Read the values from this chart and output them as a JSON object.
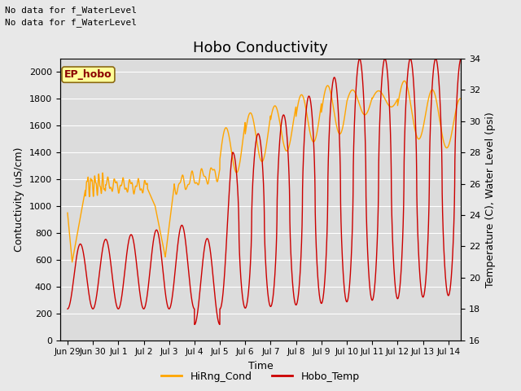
{
  "title": "Hobo Conductivity",
  "xlabel": "Time",
  "ylabel_left": "Contuctivity (uS/cm)",
  "ylabel_right": "Temperature (C), Water Level (psi)",
  "annotation_line1": "No data for f_WaterLevel",
  "annotation_line2": "No data for f_WaterLevel",
  "ep_hobo_label": "EP_hobo",
  "fig_bg_color": "#e8e8e8",
  "plot_bg_color": "#dcdcdc",
  "left_ylim": [
    0,
    2100
  ],
  "right_ylim": [
    16,
    34
  ],
  "right_yticks": [
    16,
    18,
    20,
    22,
    24,
    26,
    28,
    30,
    32,
    34
  ],
  "left_yticks": [
    0,
    200,
    400,
    600,
    800,
    1000,
    1200,
    1400,
    1600,
    1800,
    2000
  ],
  "xtick_positions": [
    0,
    1,
    2,
    3,
    4,
    5,
    6,
    7,
    8,
    9,
    10,
    11,
    12,
    13,
    14,
    15
  ],
  "xtick_labels": [
    "Jun 29",
    "Jun 30",
    "Jul 1",
    "Jul 2",
    "Jul 3",
    "Jul 4",
    "Jul 5",
    "Jul 6",
    "Jul 7",
    "Jul 8",
    "Jul 9",
    "Jul 10",
    "Jul 11",
    "Jul 12",
    "Jul 13",
    "Jul 14"
  ],
  "cond_color": "#FFA500",
  "temp_color": "#CC0000",
  "legend_cond": "HiRng_Cond",
  "legend_temp": "Hobo_Temp",
  "grid_color": "#ffffff",
  "title_fontsize": 13,
  "axis_label_fontsize": 9,
  "tick_fontsize": 8,
  "annot_fontsize": 8
}
